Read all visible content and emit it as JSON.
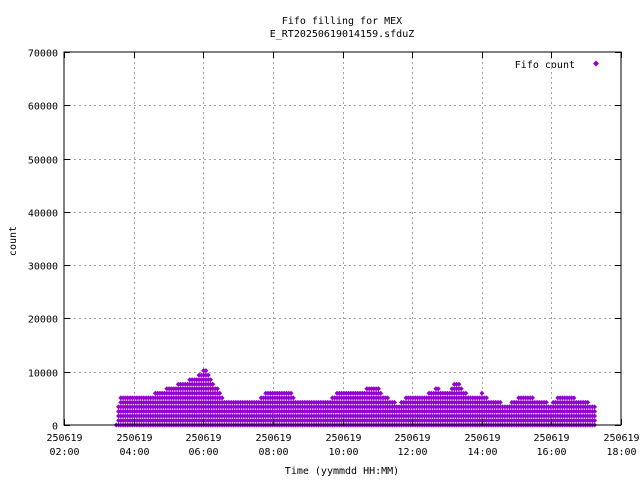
{
  "chart_data": {
    "type": "scatter",
    "title_lines": [
      "Fifo filling for MEX",
      "E_RT20250619014159.sfduZ"
    ],
    "xlabel": "Time (yymmdd HH:MM)",
    "ylabel": "count",
    "xlim_hours": [
      2,
      18
    ],
    "ylim": [
      0,
      70000
    ],
    "y_ticks": [
      "0",
      "10000",
      "20000",
      "30000",
      "40000",
      "50000",
      "60000",
      "70000"
    ],
    "x_ticks": [
      {
        "date": "250619",
        "time": "02:00"
      },
      {
        "date": "250619",
        "time": "04:00"
      },
      {
        "date": "250619",
        "time": "06:00"
      },
      {
        "date": "250619",
        "time": "08:00"
      },
      {
        "date": "250619",
        "time": "10:00"
      },
      {
        "date": "250619",
        "time": "12:00"
      },
      {
        "date": "250619",
        "time": "14:00"
      },
      {
        "date": "250619",
        "time": "16:00"
      },
      {
        "date": "250619",
        "time": "18:00"
      }
    ],
    "grid": true,
    "legend": {
      "position": "top-right"
    },
    "series": [
      {
        "name": "Fifo count",
        "color": "#9400d3",
        "marker": "diamond",
        "data_range_hours": [
          3.5,
          17.3
        ],
        "envelope": [
          [
            3.5,
            0
          ],
          [
            3.6,
            5500
          ],
          [
            4.2,
            5500
          ],
          [
            4.6,
            6000
          ],
          [
            5.0,
            7000
          ],
          [
            5.4,
            8000
          ],
          [
            5.9,
            9500
          ],
          [
            6.05,
            10500
          ],
          [
            6.3,
            8000
          ],
          [
            6.6,
            5000
          ],
          [
            7.5,
            4500
          ],
          [
            7.9,
            6500
          ],
          [
            8.5,
            6500
          ],
          [
            8.7,
            4500
          ],
          [
            9.6,
            4500
          ],
          [
            9.8,
            6000
          ],
          [
            10.5,
            6500
          ],
          [
            11.0,
            7500
          ],
          [
            11.2,
            5500
          ],
          [
            11.6,
            4000
          ],
          [
            11.9,
            6000
          ],
          [
            12.3,
            5500
          ],
          [
            12.7,
            7000
          ],
          [
            13.0,
            6000
          ],
          [
            13.25,
            8500
          ],
          [
            13.6,
            5500
          ],
          [
            14.0,
            6000
          ],
          [
            14.3,
            4500
          ],
          [
            14.8,
            4000
          ],
          [
            15.2,
            5800
          ],
          [
            15.5,
            5000
          ],
          [
            16.0,
            4000
          ],
          [
            16.2,
            5800
          ],
          [
            16.6,
            5500
          ],
          [
            16.8,
            4500
          ],
          [
            17.3,
            4000
          ]
        ]
      }
    ]
  }
}
